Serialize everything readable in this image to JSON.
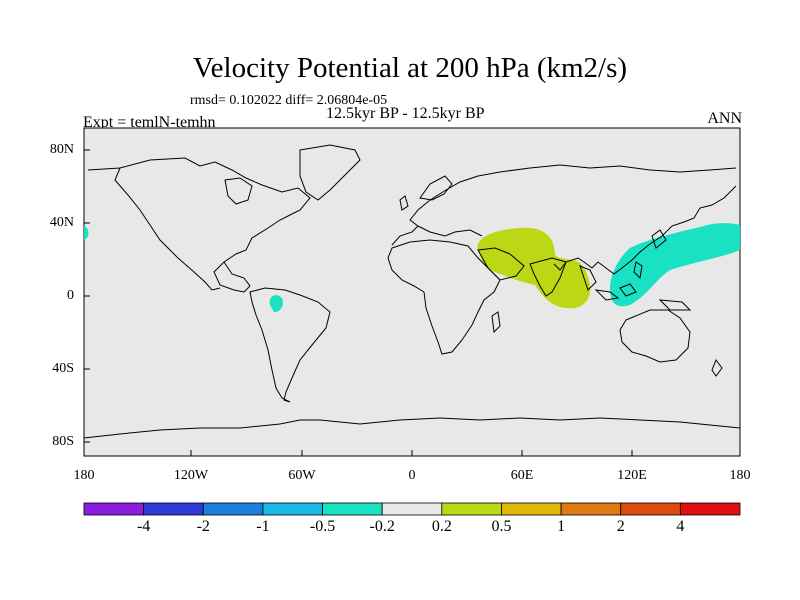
{
  "title": "Velocity Potential at 200 hPa (km2/s)",
  "stats_line": "rmsd= 0.102022 diff= 2.06804e-05",
  "subtitle": "12.5kyr BP - 12.5kyr BP",
  "experiment": "Expt = temlN-temhn",
  "season": "ANN",
  "latitude_labels": [
    "80N",
    "40N",
    "0",
    "40S",
    "80S"
  ],
  "longitude_labels": [
    "180",
    "120W",
    "60W",
    "0",
    "60E",
    "120E",
    "180"
  ],
  "colorbar": {
    "labels": [
      "-4",
      "-2",
      "-1",
      "-0.5",
      "-0.2",
      "0.2",
      "0.5",
      "1",
      "2",
      "4"
    ],
    "colors": [
      "#8a1de0",
      "#2f3bd8",
      "#1a80e0",
      "#1ab8e6",
      "#19e2c4",
      "#e8e8e8",
      "#bcd814",
      "#e0b808",
      "#e07a10",
      "#e04a0c",
      "#e01010"
    ]
  },
  "colors": {
    "land_ocean_background": "#e8e8e8",
    "positive_anomaly": "#bcd814",
    "negative_anomaly": "#19e2c4",
    "coastline": "#000000"
  }
}
